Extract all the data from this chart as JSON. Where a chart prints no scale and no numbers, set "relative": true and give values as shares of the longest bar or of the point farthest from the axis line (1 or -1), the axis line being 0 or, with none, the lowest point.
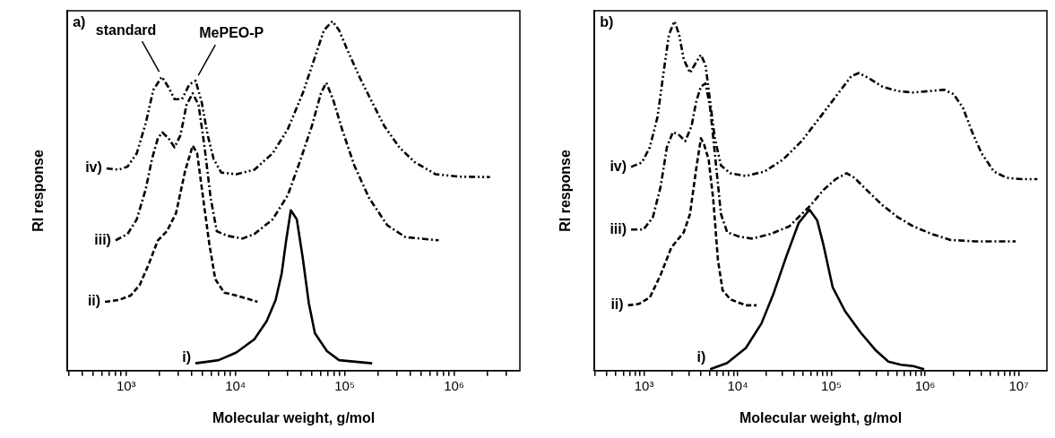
{
  "chart_data": [
    {
      "type": "line",
      "relative": true,
      "log": "x",
      "xlabel": "Molecular weight, g/mol",
      "ylabel": "RI response",
      "xlim": [
        290,
        4000000
      ],
      "xticks": [
        {
          "value": 300,
          "label": null
        },
        {
          "value": 400,
          "label": null
        },
        {
          "value": 500,
          "label": null
        },
        {
          "value": 600,
          "label": null
        },
        {
          "value": 700,
          "label": null
        },
        {
          "value": 800,
          "label": null
        },
        {
          "value": 900,
          "label": null
        },
        {
          "value": 1000,
          "label": "10³"
        },
        {
          "value": 2000,
          "label": null
        },
        {
          "value": 3000,
          "label": null
        },
        {
          "value": 4000,
          "label": null
        },
        {
          "value": 5000,
          "label": null
        },
        {
          "value": 6000,
          "label": null
        },
        {
          "value": 7000,
          "label": null
        },
        {
          "value": 8000,
          "label": null
        },
        {
          "value": 9000,
          "label": null
        },
        {
          "value": 10000,
          "label": "10⁴"
        },
        {
          "value": 20000,
          "label": null
        },
        {
          "value": 30000,
          "label": null
        },
        {
          "value": 40000,
          "label": null
        },
        {
          "value": 50000,
          "label": null
        },
        {
          "value": 60000,
          "label": null
        },
        {
          "value": 70000,
          "label": null
        },
        {
          "value": 80000,
          "label": null
        },
        {
          "value": 90000,
          "label": null
        },
        {
          "value": 100000,
          "label": "10⁵"
        },
        {
          "value": 200000,
          "label": null
        },
        {
          "value": 300000,
          "label": null
        },
        {
          "value": 400000,
          "label": null
        },
        {
          "value": 500000,
          "label": null
        },
        {
          "value": 600000,
          "label": null
        },
        {
          "value": 700000,
          "label": null
        },
        {
          "value": 800000,
          "label": null
        },
        {
          "value": 900000,
          "label": null
        },
        {
          "value": 1000000,
          "label": "10⁶"
        },
        {
          "value": 2000000,
          "label": null
        },
        {
          "value": 3000000,
          "label": null
        }
      ],
      "annotations": [
        "a)",
        {
          "text": "standard",
          "x": 2120,
          "y": 0.84
        },
        {
          "text": "MePEO-P",
          "x": 4320,
          "y": 0.83
        }
      ],
      "series": [
        {
          "name": "i)",
          "color": "#000000",
          "line_style": "solid",
          "x": [
            4300,
            7000,
            10200,
            14900,
            19300,
            23300,
            26500,
            29100,
            32100,
            36400,
            41300,
            46900,
            53300,
            68700,
            88700,
            178000
          ],
          "values": [
            0.021,
            0.03,
            0.052,
            0.09,
            0.142,
            0.202,
            0.279,
            0.373,
            0.459,
            0.433,
            0.322,
            0.193,
            0.107,
            0.056,
            0.03,
            0.021
          ]
        },
        {
          "name": "ii)",
          "color": "#000000",
          "line_style": "dashed",
          "x": [
            640,
            853,
            1100,
            1330,
            1610,
            1950,
            2360,
            2860,
            3460,
            4060,
            4460,
            5060,
            5750,
            6530,
            7910,
            10200,
            15900
          ],
          "values": [
            0.197,
            0.202,
            0.215,
            0.245,
            0.305,
            0.373,
            0.399,
            0.451,
            0.571,
            0.644,
            0.622,
            0.494,
            0.365,
            0.262,
            0.223,
            0.215,
            0.197
          ]
        },
        {
          "name": "iii)",
          "color": "#000000",
          "line_style": "dashdot",
          "x": [
            800,
            1030,
            1250,
            1510,
            1720,
            1950,
            2140,
            2440,
            2770,
            3140,
            3560,
            4060,
            4600,
            5220,
            5930,
            6750,
            8410,
            11600,
            14900,
            21900,
            30100,
            38700,
            50000,
            60500,
            67800,
            78000,
            94400,
            122000,
            167000,
            245000,
            359000,
            723000
          ],
          "values": [
            0.373,
            0.391,
            0.433,
            0.519,
            0.605,
            0.665,
            0.682,
            0.665,
            0.639,
            0.674,
            0.76,
            0.794,
            0.76,
            0.639,
            0.494,
            0.399,
            0.386,
            0.378,
            0.391,
            0.433,
            0.502,
            0.597,
            0.7,
            0.794,
            0.824,
            0.777,
            0.691,
            0.588,
            0.494,
            0.416,
            0.382,
            0.373
          ]
        },
        {
          "name": "iv)",
          "color": "#000000",
          "line_style": "dashdotdot",
          "x": [
            661,
            853,
            1030,
            1250,
            1510,
            1770,
            2120,
            2440,
            2770,
            3240,
            3800,
            4320,
            4910,
            5570,
            6320,
            7410,
            10200,
            14900,
            21900,
            30100,
            41300,
            53300,
            64400,
            77100,
            88700,
            107000,
            138000,
            178000,
            230000,
            316000,
            435000,
            678000,
            1130000,
            2130000
          ],
          "values": [
            0.579,
            0.575,
            0.584,
            0.622,
            0.708,
            0.803,
            0.841,
            0.811,
            0.777,
            0.777,
            0.82,
            0.83,
            0.768,
            0.674,
            0.605,
            0.567,
            0.562,
            0.575,
            0.622,
            0.691,
            0.794,
            0.897,
            0.974,
            1,
            0.974,
            0.914,
            0.837,
            0.768,
            0.7,
            0.639,
            0.597,
            0.562,
            0.555,
            0.554
          ]
        }
      ]
    },
    {
      "type": "line",
      "relative": true,
      "log": "x",
      "xlabel": "Molecular weight, g/mol",
      "ylabel": "RI response",
      "xlim": [
        295,
        20000000
      ],
      "xticks": [
        {
          "value": 300,
          "label": null
        },
        {
          "value": 400,
          "label": null
        },
        {
          "value": 500,
          "label": null
        },
        {
          "value": 600,
          "label": null
        },
        {
          "value": 700,
          "label": null
        },
        {
          "value": 800,
          "label": null
        },
        {
          "value": 900,
          "label": null
        },
        {
          "value": 1000,
          "label": "10³"
        },
        {
          "value": 2000,
          "label": null
        },
        {
          "value": 3000,
          "label": null
        },
        {
          "value": 4000,
          "label": null
        },
        {
          "value": 5000,
          "label": null
        },
        {
          "value": 6000,
          "label": null
        },
        {
          "value": 7000,
          "label": null
        },
        {
          "value": 8000,
          "label": null
        },
        {
          "value": 9000,
          "label": null
        },
        {
          "value": 10000,
          "label": "10⁴"
        },
        {
          "value": 20000,
          "label": null
        },
        {
          "value": 30000,
          "label": null
        },
        {
          "value": 40000,
          "label": null
        },
        {
          "value": 50000,
          "label": null
        },
        {
          "value": 60000,
          "label": null
        },
        {
          "value": 70000,
          "label": null
        },
        {
          "value": 80000,
          "label": null
        },
        {
          "value": 90000,
          "label": null
        },
        {
          "value": 100000,
          "label": "10⁵"
        },
        {
          "value": 200000,
          "label": null
        },
        {
          "value": 300000,
          "label": null
        },
        {
          "value": 400000,
          "label": null
        },
        {
          "value": 500000,
          "label": null
        },
        {
          "value": 600000,
          "label": null
        },
        {
          "value": 700000,
          "label": null
        },
        {
          "value": 800000,
          "label": null
        },
        {
          "value": 900000,
          "label": null
        },
        {
          "value": 1000000,
          "label": "10⁶"
        },
        {
          "value": 2000000,
          "label": null
        },
        {
          "value": 3000000,
          "label": null
        },
        {
          "value": 4000000,
          "label": null
        },
        {
          "value": 5000000,
          "label": null
        },
        {
          "value": 6000000,
          "label": null
        },
        {
          "value": 7000000,
          "label": null
        },
        {
          "value": 8000000,
          "label": null
        },
        {
          "value": 9000000,
          "label": null
        },
        {
          "value": 10000000,
          "label": "10⁷"
        }
      ],
      "annotations": [
        "b)"
      ],
      "series": [
        {
          "name": "i)",
          "color": "#000000",
          "line_style": "solid",
          "x": [
            5070,
            7710,
            12200,
            17900,
            24200,
            32900,
            44600,
            58200,
            70500,
            82000,
            103000,
            140000,
            205000,
            300000,
            406000,
            552000,
            748000,
            977000
          ],
          "values": [
            0.004,
            0.022,
            0.065,
            0.135,
            0.222,
            0.326,
            0.422,
            0.461,
            0.43,
            0.361,
            0.239,
            0.17,
            0.109,
            0.057,
            0.026,
            0.017,
            0.013,
            0.004
          ]
        },
        {
          "name": "ii)",
          "color": "#000000",
          "line_style": "dashed",
          "x": [
            673,
            879,
            1150,
            1500,
            1950,
            2650,
            3090,
            3600,
            4040,
            4360,
            4890,
            5470,
            6140,
            6890,
            8340,
            12200,
            15900
          ],
          "values": [
            0.187,
            0.191,
            0.209,
            0.274,
            0.352,
            0.396,
            0.448,
            0.578,
            0.665,
            0.648,
            0.604,
            0.491,
            0.317,
            0.23,
            0.204,
            0.187,
            0.187
          ]
        },
        {
          "name": "iii)",
          "color": "#000000",
          "line_style": "dashdot",
          "x": [
            726,
            984,
            1240,
            1500,
            1750,
            2030,
            2370,
            2750,
            3210,
            3600,
            4040,
            4530,
            5070,
            5690,
            6620,
            7710,
            10500,
            14200,
            22400,
            35500,
            48100,
            60400,
            82000,
            111000,
            145000,
            176000,
            238000,
            349000,
            512000,
            748000,
            1180000,
            1870000,
            3440000,
            9270000
          ],
          "values": [
            0.404,
            0.404,
            0.439,
            0.526,
            0.639,
            0.683,
            0.674,
            0.657,
            0.7,
            0.77,
            0.813,
            0.822,
            0.752,
            0.622,
            0.448,
            0.396,
            0.383,
            0.378,
            0.391,
            0.413,
            0.448,
            0.474,
            0.517,
            0.548,
            0.565,
            0.552,
            0.517,
            0.474,
            0.439,
            0.413,
            0.391,
            0.374,
            0.37,
            0.37
          ]
        },
        {
          "name": "iv)",
          "color": "#000000",
          "line_style": "dashdotdot",
          "x": [
            726,
            948,
            1150,
            1390,
            1620,
            1840,
            2110,
            2370,
            2650,
            3090,
            3600,
            4040,
            4530,
            5070,
            5690,
            6620,
            8340,
            12200,
            19300,
            30400,
            48100,
            76000,
            120000,
            163000,
            197000,
            258000,
            349000,
            512000,
            748000,
            1100000,
            1600000,
            2020000,
            2540000,
            3180000,
            4010000,
            5430000,
            7380000,
            10800000,
            15800000
          ],
          "values": [
            0.583,
            0.596,
            0.639,
            0.726,
            0.857,
            0.961,
            1,
            0.961,
            0.891,
            0.852,
            0.883,
            0.904,
            0.874,
            0.77,
            0.665,
            0.587,
            0.565,
            0.557,
            0.57,
            0.604,
            0.657,
            0.726,
            0.796,
            0.843,
            0.852,
            0.835,
            0.813,
            0.8,
            0.796,
            0.8,
            0.804,
            0.791,
            0.752,
            0.683,
            0.622,
            0.57,
            0.552,
            0.548,
            0.548
          ]
        }
      ]
    }
  ]
}
